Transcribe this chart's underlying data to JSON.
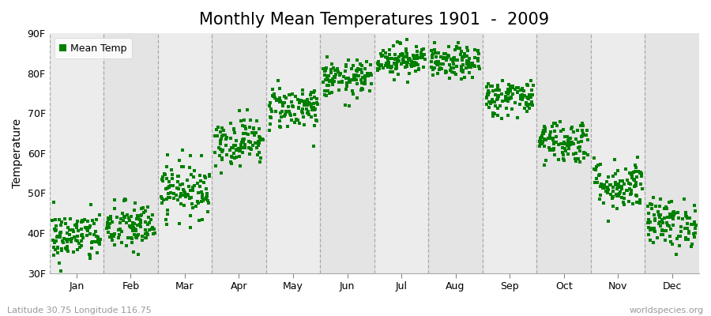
{
  "title": "Monthly Mean Temperatures 1901  -  2009",
  "ylabel": "Temperature",
  "xlabel": "",
  "ylim": [
    30,
    90
  ],
  "yticks": [
    30,
    40,
    50,
    60,
    70,
    80,
    90
  ],
  "ytick_labels": [
    "30F",
    "40F",
    "50F",
    "60F",
    "70F",
    "80F",
    "90F"
  ],
  "months": [
    "Jan",
    "Feb",
    "Mar",
    "Apr",
    "May",
    "Jun",
    "Jul",
    "Aug",
    "Sep",
    "Oct",
    "Nov",
    "Dec"
  ],
  "mean_temps_F": [
    39.0,
    41.5,
    51.0,
    63.0,
    71.5,
    78.5,
    83.5,
    82.5,
    74.0,
    63.0,
    52.0,
    42.5
  ],
  "std_temps_F": [
    3.2,
    3.2,
    3.5,
    3.0,
    2.8,
    2.3,
    2.0,
    2.0,
    2.3,
    2.8,
    3.2,
    3.0
  ],
  "dot_color": "#008000",
  "dot_size": 5,
  "n_years": 109,
  "band_colors": [
    "#ececec",
    "#e4e4e4"
  ],
  "bg_color": "#ececec",
  "dashed_line_color": "#999999",
  "legend_label": "Mean Temp",
  "bottom_left_text": "Latitude 30.75 Longitude 116.75",
  "bottom_right_text": "worldspecies.org",
  "title_fontsize": 15,
  "axis_label_fontsize": 10,
  "tick_fontsize": 9,
  "annotation_fontsize": 8
}
